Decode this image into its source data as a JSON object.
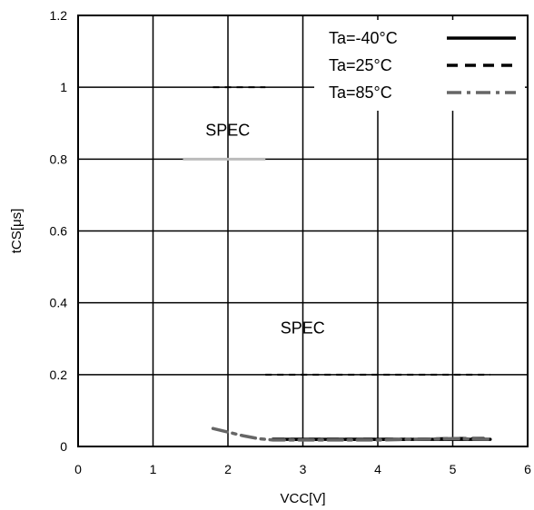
{
  "chart_data": {
    "type": "line",
    "title": "",
    "xlabel": "VCC[V]",
    "ylabel": "tCS[μs]",
    "xlim": [
      0,
      6
    ],
    "ylim": [
      0,
      1.2
    ],
    "x_ticks": [
      "0",
      "1",
      "2",
      "3",
      "4",
      "5",
      "6"
    ],
    "y_ticks": [
      "0",
      "0.2",
      "0.4",
      "0.6",
      "0.8",
      "1",
      "1.2"
    ],
    "grid": true,
    "legend_position": "top-right",
    "series": [
      {
        "name": "Ta=-40°C",
        "style": "solid",
        "color": "#000000",
        "x": [
          2.6,
          3.0,
          3.5,
          4.0,
          4.5,
          5.0,
          5.5
        ],
        "y": [
          0.02,
          0.02,
          0.02,
          0.02,
          0.02,
          0.02,
          0.02
        ]
      },
      {
        "name": "Ta=25°C",
        "style": "dash",
        "color": "#000000",
        "x": [
          2.6,
          3.0,
          3.5,
          4.0,
          4.5,
          5.0,
          5.5
        ],
        "y": [
          0.02,
          0.02,
          0.02,
          0.02,
          0.02,
          0.022,
          0.022
        ]
      },
      {
        "name": "Ta=85°C",
        "style": "dashdot",
        "color": "#666666",
        "x": [
          1.8,
          2.0,
          2.2,
          2.4,
          2.6,
          3.0,
          3.5,
          4.0,
          4.5,
          5.0,
          5.5
        ],
        "y": [
          0.05,
          0.04,
          0.03,
          0.022,
          0.018,
          0.018,
          0.018,
          0.018,
          0.02,
          0.022,
          0.02
        ]
      }
    ],
    "spec_lines": [
      {
        "y": 1.0,
        "x": [
          1.8,
          2.5
        ],
        "style": "dash"
      },
      {
        "y": 0.8,
        "x": [
          1.4,
          2.5
        ],
        "style": "solid-light"
      },
      {
        "y": 0.2,
        "x": [
          2.5,
          5.5
        ],
        "style": "dash"
      }
    ],
    "annotations": [
      {
        "text": "SPEC",
        "x": 1.7,
        "y": 0.865
      },
      {
        "text": "SPEC",
        "x": 2.7,
        "y": 0.315
      }
    ]
  }
}
